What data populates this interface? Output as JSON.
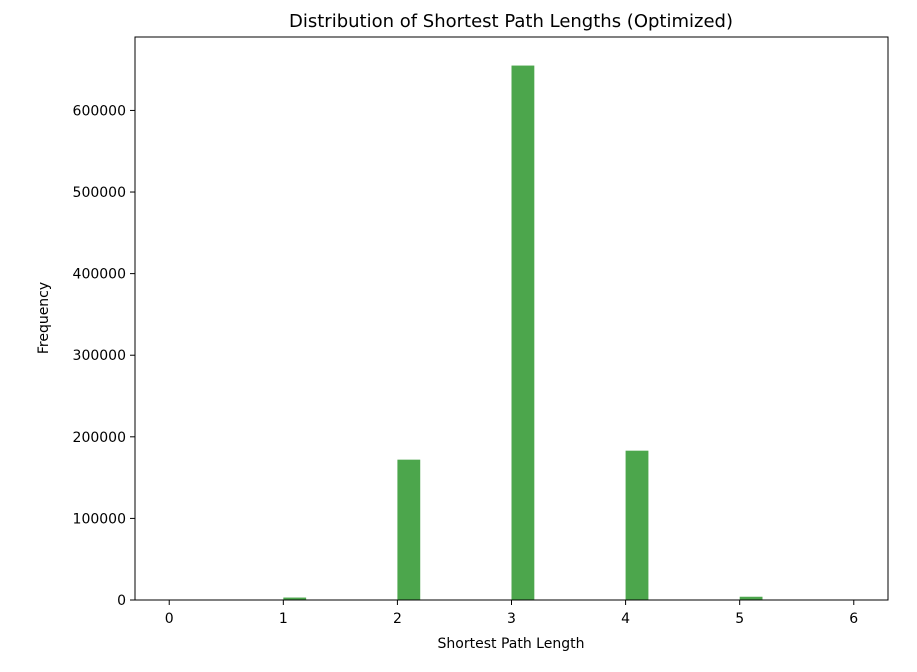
{
  "chart_data": {
    "type": "bar",
    "title": "Distribution of Shortest Path Lengths (Optimized)",
    "xlabel": "Shortest Path Length",
    "ylabel": "Frequency",
    "x_ticks": [
      0,
      1,
      2,
      3,
      4,
      5,
      6
    ],
    "y_ticks": [
      0,
      100000,
      200000,
      300000,
      400000,
      500000,
      600000
    ],
    "xlim": [
      -0.3,
      6.3
    ],
    "ylim": [
      0,
      690000
    ],
    "grid": false,
    "bar_color": "#4ca64c",
    "series": [
      {
        "bins": [
          {
            "x": 1,
            "value": 3000
          },
          {
            "x": 2,
            "value": 172000
          },
          {
            "x": 3,
            "value": 655000
          },
          {
            "x": 4,
            "value": 183000
          },
          {
            "x": 5,
            "value": 4000
          }
        ]
      }
    ]
  }
}
